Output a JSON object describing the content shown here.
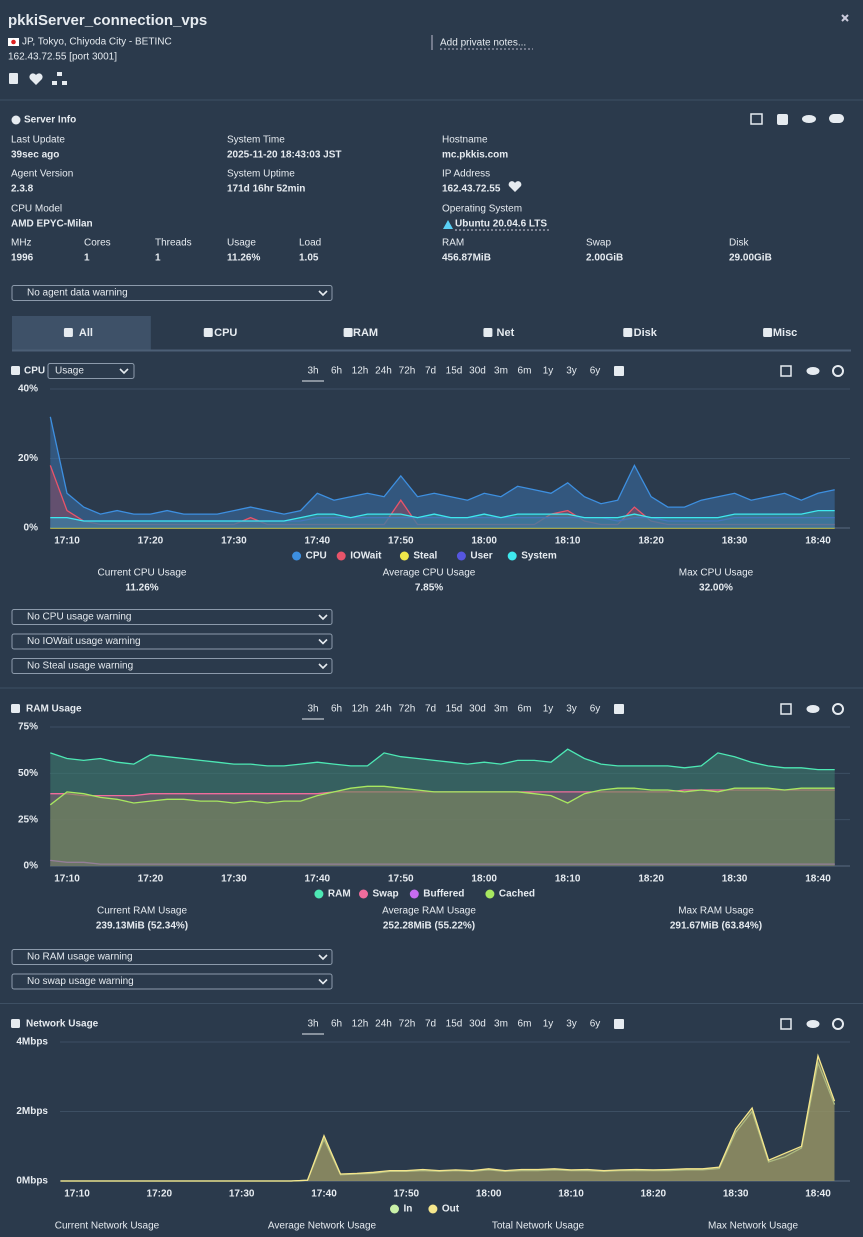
{
  "header": {
    "title": "pkkiServer_connection_vps",
    "location": "JP, Tokyo, Chiyoda City - BETINC",
    "address": "162.43.72.55 [port 3001]",
    "notes": "Add private notes..."
  },
  "server_info": {
    "title": "Server Info",
    "fields": [
      {
        "label": "Last Update",
        "value": "39sec ago"
      },
      {
        "label": "System Time",
        "value": "2025-11-20 18:43:03 JST"
      },
      {
        "label": "Hostname",
        "value": "mc.pkkis.com"
      },
      {
        "label": "Agent Version",
        "value": "2.3.8"
      },
      {
        "label": "System Uptime",
        "value": "171d 16hr 52min"
      },
      {
        "label": "IP Address",
        "value": "162.43.72.55"
      },
      {
        "label": "CPU Model",
        "value": "AMD EPYC-Milan"
      },
      {
        "label": "Operating System",
        "value": "Ubuntu 20.04.6 LTS"
      },
      {
        "label": "MHz",
        "value": "1996"
      },
      {
        "label": "Cores",
        "value": "1"
      },
      {
        "label": "Threads",
        "value": "1"
      },
      {
        "label": "Usage",
        "value": "11.26%"
      },
      {
        "label": "Load",
        "value": "1.05"
      },
      {
        "label": "RAM",
        "value": "456.87MiB"
      },
      {
        "label": "Swap",
        "value": "2.00GiB"
      },
      {
        "label": "Disk",
        "value": "29.00GiB"
      }
    ],
    "agent_warning": "No agent data warning"
  },
  "tabs": [
    "All",
    "CPU",
    "RAM",
    "Net",
    "Disk",
    "Misc"
  ],
  "chart_data": [
    {
      "type": "area",
      "title": "CPU",
      "selector": "Usage",
      "ranges": [
        "3h",
        "6h",
        "12h",
        "24h",
        "72h",
        "7d",
        "15d",
        "30d",
        "3m",
        "6m",
        "1y",
        "3y",
        "6y"
      ],
      "categories": [
        null,
        "17:10",
        null,
        null,
        null,
        null,
        "17:20",
        null,
        null,
        null,
        null,
        "17:30",
        null,
        null,
        null,
        null,
        "17:40",
        null,
        null,
        null,
        null,
        "17:50",
        null,
        null,
        null,
        null,
        "18:00",
        null,
        null,
        null,
        null,
        "18:10",
        null,
        null,
        null,
        null,
        "18:20",
        null,
        null,
        null,
        null,
        "18:30",
        null,
        null,
        null,
        null,
        "18:40",
        null
      ],
      "ylim": [
        0,
        40
      ],
      "yticks": [
        {
          "value": 0,
          "label": "0%"
        },
        {
          "value": 20,
          "label": "20%"
        },
        {
          "value": 40,
          "label": "40%"
        }
      ],
      "grid": true,
      "series": [
        {
          "name": "CPU",
          "color": "#3d8fe0",
          "values": [
            32,
            10,
            6,
            4,
            5,
            4,
            4,
            5,
            4,
            4,
            4,
            5,
            6,
            5,
            4,
            5,
            10,
            8,
            9,
            10,
            9,
            15,
            9,
            10,
            9,
            8,
            10,
            9,
            12,
            11,
            10,
            13,
            9,
            7,
            8,
            18,
            9,
            6,
            6,
            8,
            9,
            10,
            8,
            9,
            10,
            8,
            10,
            11
          ]
        },
        {
          "name": "IOWait",
          "color": "#e8546a",
          "values": [
            18,
            5,
            2,
            1,
            1,
            1,
            1,
            1,
            1,
            1,
            1,
            1,
            3,
            1,
            1,
            1,
            1,
            1,
            1,
            1,
            1,
            8,
            1,
            1,
            1,
            1,
            1,
            1,
            1,
            1,
            4,
            5,
            2,
            1,
            1,
            6,
            2,
            1,
            1,
            1,
            1,
            1,
            1,
            1,
            1,
            1,
            1,
            1
          ]
        },
        {
          "name": "Steal",
          "color": "#f0e84a",
          "values": [
            0,
            0,
            0,
            0,
            0,
            0,
            0,
            0,
            0,
            0,
            0,
            0,
            0,
            0,
            0,
            0,
            0,
            0,
            0,
            0,
            0,
            0,
            0,
            0,
            0,
            0,
            0,
            0,
            0,
            0,
            0,
            0,
            0,
            0,
            0,
            0,
            0,
            0,
            0,
            0,
            0,
            0,
            0,
            0,
            0,
            0,
            0,
            0
          ]
        },
        {
          "name": "User",
          "color": "#5656e0",
          "values": [
            3,
            3,
            2,
            2,
            2,
            2,
            2,
            2,
            2,
            2,
            2,
            2,
            2,
            2,
            2,
            2,
            3,
            3,
            3,
            3,
            3,
            3,
            3,
            3,
            3,
            3,
            3,
            3,
            3,
            3,
            3,
            3,
            3,
            3,
            2,
            3,
            3,
            2,
            2,
            2,
            2,
            3,
            3,
            3,
            3,
            3,
            3,
            3
          ]
        },
        {
          "name": "System",
          "color": "#3ee8ee",
          "values": [
            3,
            3,
            2,
            2,
            2,
            2,
            2,
            2,
            2,
            2,
            2,
            2,
            2,
            2,
            2,
            3,
            4,
            4,
            3,
            4,
            4,
            4,
            3,
            4,
            3,
            3,
            4,
            3,
            4,
            4,
            4,
            4,
            3,
            3,
            3,
            4,
            3,
            3,
            3,
            3,
            3,
            4,
            4,
            4,
            4,
            4,
            5,
            5
          ]
        }
      ],
      "stats": [
        {
          "label": "Current CPU Usage",
          "value": "11.26%"
        },
        {
          "label": "Average CPU Usage",
          "value": "7.85%"
        },
        {
          "label": "Max CPU Usage",
          "value": "32.00%"
        }
      ],
      "warnings": [
        "No CPU usage warning",
        "No IOWait usage warning",
        "No Steal usage warning"
      ]
    },
    {
      "type": "area",
      "title": "RAM Usage",
      "ranges": [
        "3h",
        "6h",
        "12h",
        "24h",
        "72h",
        "7d",
        "15d",
        "30d",
        "3m",
        "6m",
        "1y",
        "3y",
        "6y"
      ],
      "categories": [
        null,
        "17:10",
        null,
        null,
        null,
        null,
        "17:20",
        null,
        null,
        null,
        null,
        "17:30",
        null,
        null,
        null,
        null,
        "17:40",
        null,
        null,
        null,
        null,
        "17:50",
        null,
        null,
        null,
        null,
        "18:00",
        null,
        null,
        null,
        null,
        "18:10",
        null,
        null,
        null,
        null,
        "18:20",
        null,
        null,
        null,
        null,
        "18:30",
        null,
        null,
        null,
        null,
        "18:40",
        null
      ],
      "ylim": [
        0,
        75
      ],
      "yticks": [
        {
          "value": 0,
          "label": "0%"
        },
        {
          "value": 25,
          "label": "25%"
        },
        {
          "value": 50,
          "label": "50%"
        },
        {
          "value": 75,
          "label": "75%"
        }
      ],
      "grid": true,
      "series": [
        {
          "name": "RAM",
          "color": "#4de8b4",
          "values": [
            61,
            58,
            57,
            58,
            56,
            55,
            60,
            59,
            58,
            57,
            56,
            55,
            55,
            54,
            54,
            55,
            56,
            55,
            54,
            54,
            61,
            59,
            58,
            57,
            56,
            55,
            56,
            55,
            57,
            57,
            56,
            63,
            58,
            55,
            54,
            54,
            54,
            54,
            53,
            54,
            61,
            59,
            56,
            54,
            53,
            53,
            52,
            52
          ]
        },
        {
          "name": "Swap",
          "color": "#f06c9c",
          "values": [
            39,
            39,
            38,
            38,
            38,
            38,
            39,
            39,
            39,
            39,
            39,
            39,
            39,
            39,
            39,
            39,
            39,
            40,
            40,
            40,
            40,
            40,
            40,
            40,
            40,
            40,
            40,
            40,
            40,
            40,
            40,
            40,
            40,
            40,
            40,
            40,
            40,
            40,
            41,
            41,
            41,
            41,
            41,
            41,
            41,
            41,
            41,
            41
          ]
        },
        {
          "name": "Buffered",
          "color": "#c86cf0",
          "values": [
            3,
            2,
            2,
            1,
            1,
            1,
            1,
            1,
            1,
            1,
            1,
            1,
            1,
            1,
            1,
            1,
            1,
            1,
            1,
            1,
            1,
            1,
            1,
            1,
            1,
            1,
            1,
            1,
            1,
            1,
            1,
            1,
            1,
            1,
            1,
            1,
            1,
            1,
            1,
            1,
            1,
            1,
            1,
            1,
            1,
            1,
            1,
            1
          ]
        },
        {
          "name": "Cached",
          "color": "#a8e860",
          "values": [
            33,
            40,
            39,
            37,
            36,
            34,
            35,
            36,
            36,
            35,
            35,
            34,
            35,
            34,
            35,
            35,
            38,
            40,
            42,
            43,
            43,
            42,
            41,
            40,
            40,
            40,
            40,
            40,
            40,
            39,
            38,
            34,
            39,
            41,
            42,
            42,
            41,
            41,
            40,
            41,
            40,
            42,
            42,
            42,
            41,
            42,
            42,
            42
          ]
        }
      ],
      "stats": [
        {
          "label": "Current RAM Usage",
          "value": "239.13MiB (52.34%)"
        },
        {
          "label": "Average RAM Usage",
          "value": "252.28MiB (55.22%)"
        },
        {
          "label": "Max RAM Usage",
          "value": "291.67MiB (63.84%)"
        }
      ],
      "warnings": [
        "No RAM usage warning",
        "No swap usage warning"
      ]
    },
    {
      "type": "area",
      "title": "Network Usage",
      "ranges": [
        "3h",
        "6h",
        "12h",
        "24h",
        "72h",
        "7d",
        "15d",
        "30d",
        "3m",
        "6m",
        "1y",
        "3y",
        "6y"
      ],
      "categories": [
        null,
        "17:10",
        null,
        null,
        null,
        null,
        "17:20",
        null,
        null,
        null,
        null,
        "17:30",
        null,
        null,
        null,
        null,
        "17:40",
        null,
        null,
        null,
        null,
        "17:50",
        null,
        null,
        null,
        null,
        "18:00",
        null,
        null,
        null,
        null,
        "18:10",
        null,
        null,
        null,
        null,
        "18:20",
        null,
        null,
        null,
        null,
        "18:30",
        null,
        null,
        null,
        null,
        "18:40",
        null
      ],
      "ylim": [
        0,
        4
      ],
      "yticks": [
        {
          "value": 0,
          "label": "0Mbps"
        },
        {
          "value": 2,
          "label": "2Mbps"
        },
        {
          "value": 4,
          "label": "4Mbps"
        }
      ],
      "grid": true,
      "series": [
        {
          "name": "In",
          "color": "#c9f0a8",
          "values": [
            0,
            0,
            0,
            0,
            0,
            0,
            0,
            0,
            0,
            0,
            0,
            0,
            0,
            0,
            0,
            0.02,
            1.2,
            0.18,
            0.2,
            0.22,
            0.28,
            0.28,
            0.3,
            0.28,
            0.3,
            0.28,
            0.32,
            0.28,
            0.3,
            0.3,
            0.32,
            0.3,
            0.3,
            0.28,
            0.3,
            0.3,
            0.3,
            0.3,
            0.32,
            0.32,
            0.36,
            1.4,
            2.0,
            0.55,
            0.7,
            0.95,
            3.4,
            2.2
          ]
        },
        {
          "name": "Out",
          "color": "#f5e68c",
          "values": [
            0,
            0,
            0,
            0,
            0,
            0,
            0,
            0,
            0,
            0,
            0,
            0,
            0,
            0,
            0,
            0.02,
            1.3,
            0.2,
            0.22,
            0.25,
            0.3,
            0.3,
            0.33,
            0.3,
            0.32,
            0.3,
            0.35,
            0.3,
            0.33,
            0.33,
            0.35,
            0.32,
            0.33,
            0.3,
            0.32,
            0.33,
            0.32,
            0.33,
            0.35,
            0.35,
            0.4,
            1.5,
            2.1,
            0.6,
            0.8,
            1.0,
            3.6,
            2.3
          ]
        }
      ],
      "stats": [
        {
          "label": "Current Network Usage"
        },
        {
          "label": "Average Network Usage"
        },
        {
          "label": "Total Network Usage"
        },
        {
          "label": "Max Network Usage"
        }
      ]
    }
  ]
}
